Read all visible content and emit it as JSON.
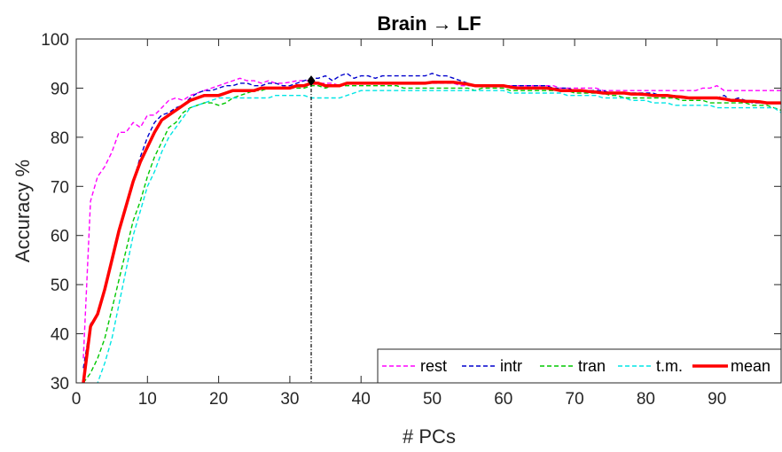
{
  "chart_data": {
    "type": "line",
    "title": "Brain → LF",
    "xlabel": "# PCs",
    "ylabel": "Accuracy %",
    "xlim": [
      0,
      99
    ],
    "ylim": [
      30,
      100
    ],
    "xticks": [
      0,
      10,
      20,
      30,
      40,
      50,
      60,
      70,
      80,
      90
    ],
    "yticks": [
      30,
      40,
      50,
      60,
      70,
      80,
      90,
      100
    ],
    "grid": false,
    "legend_position": "bottom-right, horizontal",
    "x": [
      1,
      2,
      3,
      4,
      5,
      6,
      7,
      8,
      9,
      10,
      11,
      12,
      13,
      14,
      15,
      16,
      17,
      18,
      19,
      20,
      21,
      22,
      23,
      24,
      25,
      26,
      27,
      28,
      29,
      30,
      31,
      32,
      33,
      34,
      35,
      36,
      37,
      38,
      39,
      40,
      41,
      42,
      43,
      44,
      45,
      46,
      47,
      48,
      49,
      50,
      51,
      52,
      53,
      54,
      55,
      56,
      57,
      58,
      59,
      60,
      61,
      62,
      63,
      64,
      65,
      66,
      67,
      68,
      69,
      70,
      71,
      72,
      73,
      74,
      75,
      76,
      77,
      78,
      79,
      80,
      81,
      82,
      83,
      84,
      85,
      86,
      87,
      88,
      89,
      90,
      91,
      92,
      93,
      94,
      95,
      96,
      97,
      98,
      99
    ],
    "series": [
      {
        "name": "rest",
        "color": "#ff00ff",
        "style": "dashed",
        "values": [
          35,
          67,
          72,
          74,
          77,
          81,
          81,
          83,
          82,
          84.5,
          84.5,
          86,
          87.5,
          88,
          87.5,
          88.5,
          89,
          89.5,
          90,
          90.5,
          91,
          91.5,
          92,
          91.5,
          91.5,
          91,
          91.5,
          91,
          91,
          91.2,
          91.5,
          91.5,
          91.5,
          91,
          91,
          91,
          90.5,
          91,
          91,
          91,
          91,
          91,
          91,
          91,
          91,
          91,
          91,
          91,
          91,
          91,
          91,
          91,
          91,
          90.5,
          90.5,
          90.5,
          90.5,
          90.5,
          90.5,
          90.5,
          90.5,
          90.5,
          90.5,
          90.5,
          90.5,
          90.5,
          90.5,
          90,
          90,
          90,
          90,
          90,
          90,
          89.5,
          89.5,
          89.5,
          89.5,
          89.5,
          89.5,
          89.5,
          89.5,
          89.5,
          89.5,
          89.5,
          89.5,
          89.5,
          89.5,
          90,
          90,
          90.5,
          89.5,
          89.5,
          89.5,
          89.5,
          89.5,
          89.5,
          89.5,
          89.5,
          89.5
        ]
      },
      {
        "name": "intr",
        "color": "#0000cd",
        "style": "dashed",
        "values": [
          33,
          42,
          44,
          49,
          55,
          61,
          66,
          71,
          76,
          80,
          83,
          84.5,
          85,
          86,
          86.5,
          88,
          89,
          89.5,
          89.5,
          90,
          90.5,
          90.5,
          91,
          91,
          90.5,
          90.5,
          91,
          91,
          90.5,
          90.5,
          91,
          91.5,
          92,
          92,
          92.5,
          91.5,
          92.5,
          93,
          92,
          92.5,
          92.5,
          92,
          92.5,
          92.5,
          92.5,
          92.5,
          92.5,
          92.5,
          92.5,
          93,
          92.5,
          92.5,
          92,
          91.5,
          91,
          90.5,
          90.5,
          90.5,
          90.5,
          90.5,
          90.5,
          90.5,
          90.5,
          90.5,
          90.5,
          90.5,
          90,
          90,
          90,
          89.5,
          89.5,
          89.5,
          89.5,
          89.5,
          89,
          89,
          89,
          89,
          89,
          89,
          89,
          88.5,
          88.5,
          88.5,
          88,
          88,
          88,
          88,
          88,
          88,
          88.5,
          87.5,
          88,
          87.5,
          87,
          87,
          87,
          87,
          87
        ]
      },
      {
        "name": "tran",
        "color": "#00c800",
        "style": "dashed",
        "values": [
          30,
          32,
          35,
          39,
          45,
          51,
          57,
          63,
          67,
          72,
          76,
          79,
          82,
          83,
          85,
          86,
          86.5,
          87,
          87,
          86.5,
          87,
          88,
          88.5,
          89,
          89.5,
          89.5,
          90,
          90,
          90,
          90,
          90,
          90,
          90.5,
          90.5,
          90,
          90.5,
          90.5,
          90.5,
          90.5,
          90.5,
          90.5,
          90.5,
          90.5,
          90.5,
          90.5,
          90,
          90,
          90,
          90,
          90,
          90,
          90,
          90,
          90,
          90,
          89.5,
          90,
          90,
          90,
          90,
          89.5,
          89.5,
          89.5,
          89.5,
          89.5,
          89.5,
          89.5,
          89.5,
          89.5,
          89,
          89,
          89,
          89,
          89,
          88.5,
          88.5,
          88,
          88,
          88,
          88,
          88,
          88,
          88,
          88,
          87.5,
          87.5,
          87.5,
          87.5,
          87,
          87,
          87,
          87,
          87,
          87,
          86.5,
          86.5,
          86.5,
          86,
          85.5
        ]
      },
      {
        "name": "t.m.",
        "color": "#00e5e5",
        "style": "dashed",
        "values": [
          26,
          28,
          30,
          34,
          39,
          46,
          53,
          60,
          65,
          70,
          73,
          77,
          80,
          82,
          84,
          86,
          86.5,
          87,
          87.5,
          88,
          88,
          88,
          88,
          88,
          88,
          88,
          88,
          88.5,
          88.5,
          88.5,
          88.5,
          88.5,
          88,
          88,
          88,
          88,
          88,
          88.5,
          89,
          89.5,
          89.5,
          89.5,
          89.5,
          89.5,
          89.5,
          89.5,
          89.5,
          89.5,
          89.5,
          89.5,
          89.5,
          89.5,
          89.5,
          89.5,
          89.5,
          89.5,
          89.5,
          89.5,
          89.5,
          89.5,
          89,
          89,
          89,
          89,
          89,
          89,
          89,
          89,
          88.5,
          88.5,
          88.5,
          88.5,
          88.5,
          88,
          88,
          88,
          88,
          87.5,
          87.5,
          87.5,
          87,
          87,
          87,
          86.5,
          86.5,
          86.5,
          86.5,
          86.5,
          86.5,
          86,
          86,
          86,
          86,
          86,
          86,
          86,
          86,
          86,
          85
        ]
      },
      {
        "name": "mean",
        "color": "#ff0000",
        "style": "solid",
        "values": [
          30,
          41.5,
          44,
          49,
          55,
          61,
          66,
          71,
          75,
          78,
          81,
          83.5,
          84.5,
          85.5,
          86.5,
          87.5,
          88,
          88.5,
          88.5,
          88.5,
          89,
          89.5,
          89.5,
          89.5,
          89.5,
          90,
          90,
          90,
          90,
          90,
          90.5,
          90.5,
          91,
          91,
          90.5,
          90.5,
          90.5,
          91,
          91,
          91,
          91,
          91,
          91,
          91,
          91,
          91,
          91,
          91,
          91,
          91.2,
          91.2,
          91.2,
          91.2,
          91,
          90.8,
          90.5,
          90.5,
          90.5,
          90.5,
          90.5,
          90.2,
          90,
          90,
          90,
          90,
          90,
          89.8,
          89.5,
          89.5,
          89.5,
          89.5,
          89.3,
          89.2,
          89,
          89,
          89,
          89,
          88.8,
          88.8,
          88.7,
          88.5,
          88.5,
          88.5,
          88.3,
          88.2,
          88,
          88,
          88,
          88,
          88,
          87.8,
          87.5,
          87.5,
          87.3,
          87.3,
          87.2,
          87,
          87,
          87
        ]
      }
    ],
    "annotation": {
      "marker": "♦",
      "x": 33,
      "y": 91.5,
      "line_to_y": 30
    }
  }
}
